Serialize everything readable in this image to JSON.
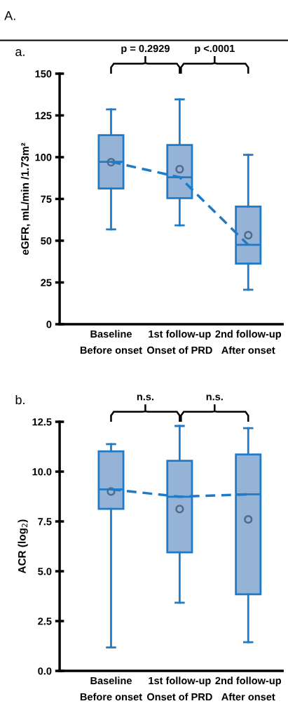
{
  "chart_data": [
    {
      "type": "box",
      "title": "a.",
      "ylabel": "eGFR, mL/min /1.73m²",
      "categories": [
        "Baseline\nBefore onset",
        "1st follow-up\nOnset of PRD",
        "2nd follow-up\nAfter onset"
      ],
      "ylim": [
        0,
        150
      ],
      "yticks": [
        0,
        25,
        50,
        75,
        100,
        125,
        150
      ],
      "grid": false,
      "legend": false,
      "annotations": [
        "A.",
        "p = 0.2929",
        "p <.0001"
      ],
      "series": [
        {
          "color": "#95b3d7",
          "boxes": [
            {
              "low": 56.8,
              "q1": 81.2,
              "median": 97.2,
              "q3": 113.2,
              "high": 128.6,
              "mean": 97
            },
            {
              "low": 59.2,
              "q1": 75.5,
              "median": 88,
              "q3": 107.3,
              "high": 134.6,
              "mean": 92.8
            },
            {
              "low": 20.6,
              "q1": 36.3,
              "median": 47.5,
              "q3": 70.4,
              "high": 101.4,
              "mean": 53.3
            }
          ]
        },
        {
          "type": "line",
          "color": "#1f7bc8",
          "line_style": "dashed",
          "marker": "none",
          "values": [
            97.2,
            88,
            47.5
          ]
        }
      ]
    },
    {
      "type": "box",
      "title": "b.",
      "ylabel": "ACR (log$_{2}$)",
      "categories": [
        "Baseline\nBefore onset",
        "1st follow-up\nOnset of PRD",
        "2nd follow-up\nAfter onset"
      ],
      "ylim": [
        0,
        12.5
      ],
      "yticks": [
        {
          "value": 0,
          "label": "0.0"
        },
        2.5,
        {
          "value": 5,
          "label": "5.0"
        },
        7.5,
        {
          "value": 10,
          "label": "10.0"
        },
        12.5
      ],
      "grid": false,
      "legend": false,
      "annotations": [
        "n.s.",
        "n.s."
      ],
      "series": [
        {
          "color": "#95b3d7",
          "boxes": [
            {
              "low": 1.18,
              "q1": 8.13,
              "median": 9.11,
              "q3": 11.02,
              "high": 11.38,
              "mean": 9.0
            },
            {
              "low": 3.42,
              "q1": 5.95,
              "median": 8.74,
              "q3": 10.54,
              "high": 12.29,
              "mean": 8.12
            },
            {
              "low": 1.44,
              "q1": 3.84,
              "median": 8.86,
              "q3": 10.86,
              "high": 12.18,
              "mean": 7.6
            }
          ]
        },
        {
          "type": "line",
          "color": "#1f7bc8",
          "line_style": "dashed",
          "marker": "none",
          "values": [
            9.11,
            8.74,
            8.86
          ]
        }
      ]
    }
  ]
}
